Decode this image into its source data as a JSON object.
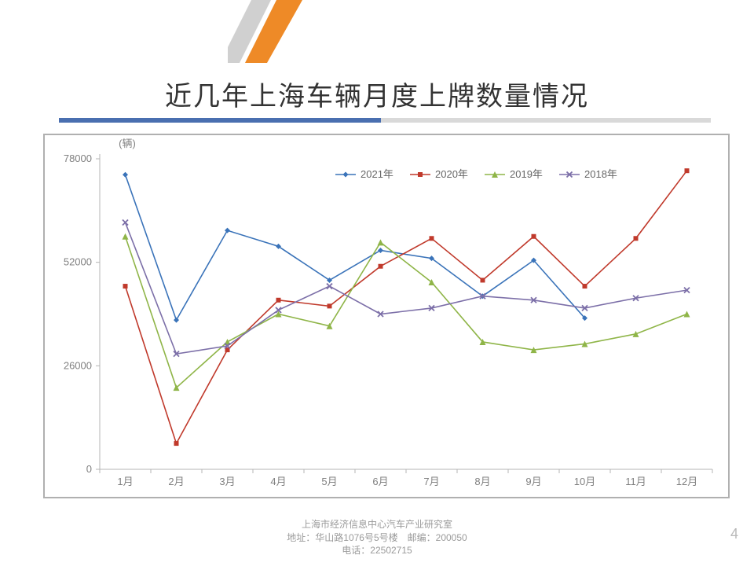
{
  "slide": {
    "title": "近几年上海车辆月度上牌数量情况",
    "page_number": "4",
    "accent_colors": {
      "orange": "#ee8a27",
      "grey": "#d0d0d0"
    },
    "title_bar_colors": {
      "blue": "#4a6fb0",
      "grey": "#d9d9d9"
    }
  },
  "footer": {
    "org": "上海市经济信息中心汽车产业研究室",
    "addr": "地址：华山路1076号5号楼　邮编：200050",
    "tel": "电话：22502715"
  },
  "chart": {
    "type": "line",
    "unit_label": "(辆)",
    "background_color": "#ffffff",
    "border_color": "#b0b0b0",
    "axis_line_color": "#b4b4b4",
    "tick_color": "#808080",
    "label_fontsize": 13,
    "categories": [
      "1月",
      "2月",
      "3月",
      "4月",
      "5月",
      "6月",
      "7月",
      "8月",
      "9月",
      "10月",
      "11月",
      "12月"
    ],
    "y": {
      "min": 0,
      "max": 78000,
      "ticks": [
        0,
        26000,
        52000,
        78000
      ]
    },
    "legend": {
      "position": "top",
      "items": [
        {
          "key": "s2021",
          "label": "2021年"
        },
        {
          "key": "s2020",
          "label": "2020年"
        },
        {
          "key": "s2019",
          "label": "2019年"
        },
        {
          "key": "s2018",
          "label": "2018年"
        }
      ]
    },
    "series": {
      "s2021": {
        "label": "2021年",
        "color": "#3a73b9",
        "marker": "diamond",
        "marker_size": 7,
        "line_width": 1.6,
        "values": [
          74000,
          37500,
          60000,
          56000,
          47500,
          55000,
          53000,
          43500,
          52500,
          38000,
          null,
          null
        ]
      },
      "s2020": {
        "label": "2020年",
        "color": "#c0392b",
        "marker": "square",
        "marker_size": 6,
        "line_width": 1.6,
        "values": [
          46000,
          6500,
          30000,
          42500,
          41000,
          51000,
          58000,
          47500,
          58500,
          46000,
          58000,
          75000
        ]
      },
      "s2019": {
        "label": "2019年",
        "color": "#8fb548",
        "marker": "triangle",
        "marker_size": 8,
        "line_width": 1.6,
        "values": [
          58500,
          20500,
          32000,
          39000,
          36000,
          57000,
          47000,
          32000,
          30000,
          31500,
          34000,
          39000
        ]
      },
      "s2018": {
        "label": "2018年",
        "color": "#7c6fa8",
        "marker": "x",
        "marker_size": 7,
        "line_width": 1.6,
        "values": [
          62000,
          29000,
          31000,
          40000,
          46000,
          39000,
          40500,
          43500,
          42500,
          40500,
          43000,
          45000
        ]
      }
    }
  }
}
